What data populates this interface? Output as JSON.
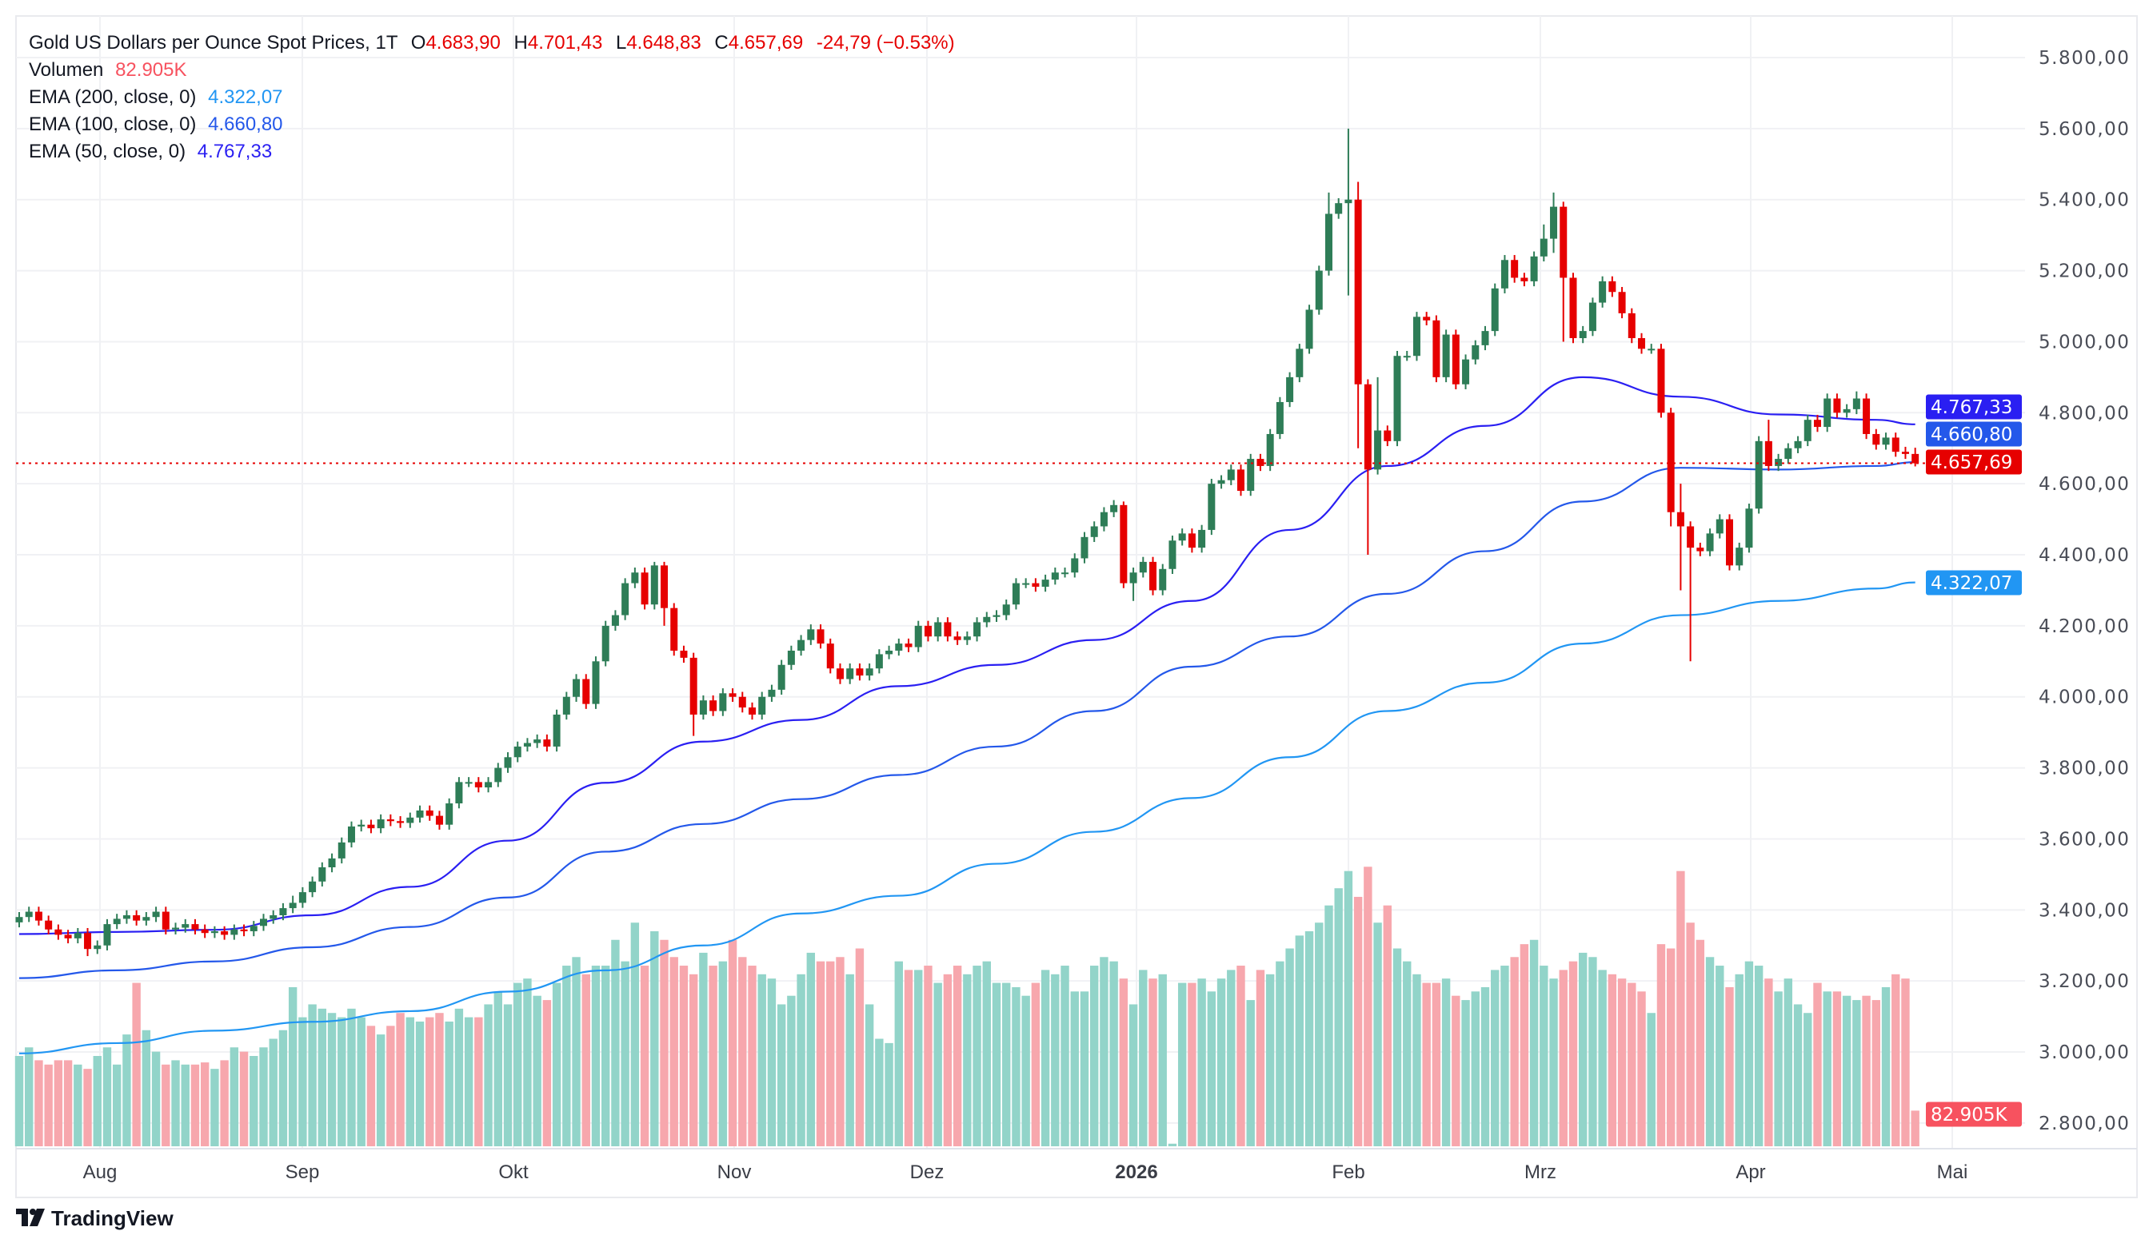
{
  "legend": {
    "title": "Gold US Dollars per Ounce Spot Prices, 1T",
    "o_label": "O",
    "o_value": "4.683,90",
    "h_label": "H",
    "h_value": "4.701,43",
    "l_label": "L",
    "l_value": "4.648,83",
    "c_label": "C",
    "c_value": "4.657,69",
    "change": "-24,79 (−0.53%)",
    "volume_label": "Volumen",
    "volume_value": "82.905K",
    "ema200_label": "EMA (200, close, 0)",
    "ema200_value": "4.322,07",
    "ema100_label": "EMA (100, close, 0)",
    "ema100_value": "4.660,80",
    "ema50_label": "EMA (50, close, 0)",
    "ema50_value": "4.767,33"
  },
  "price_tags": {
    "ema50": "4.767,33",
    "ema100": "4.660,80",
    "last": "4.657,69",
    "ema200": "4.322,07",
    "volume": "82.905K"
  },
  "branding": {
    "logo_text": "TradingView"
  },
  "colors": {
    "up": "#2e7d57",
    "down": "#e60000",
    "vol_up": "#92d4c9",
    "vol_down": "#f7a7ad",
    "ema50": "#2a1ff2",
    "ema100": "#2458ea",
    "ema200": "#2196f3",
    "last_tag": "#e60000",
    "vol_tag": "#f7525f"
  },
  "chart_data": {
    "type": "candlestick",
    "title": "Gold US Dollars per Ounce Spot Prices, 1T",
    "ylim": [
      2800,
      5800
    ],
    "y_ticks": [
      "5.800,00",
      "5.600,00",
      "5.400,00",
      "5.200,00",
      "5.000,00",
      "4.800,00",
      "4.600,00",
      "4.400,00",
      "4.200,00",
      "4.000,00",
      "3.800,00",
      "3.600,00",
      "3.400,00",
      "3.200,00",
      "3.000,00",
      "2.800,00"
    ],
    "y_tick_values": [
      5800,
      5600,
      5400,
      5200,
      5000,
      4800,
      4600,
      4400,
      4200,
      4000,
      3800,
      3600,
      3400,
      3200,
      3000,
      2800
    ],
    "x_ticks": [
      "Aug",
      "Sep",
      "Okt",
      "Nov",
      "Dez",
      "2026",
      "Feb",
      "Mrz",
      "Apr",
      "Mai"
    ],
    "grid": true,
    "close": [
      3380,
      3395,
      3370,
      3345,
      3330,
      3320,
      3335,
      3290,
      3300,
      3360,
      3375,
      3385,
      3370,
      3380,
      3395,
      3345,
      3350,
      3360,
      3345,
      3335,
      3340,
      3330,
      3345,
      3340,
      3355,
      3375,
      3385,
      3405,
      3420,
      3450,
      3480,
      3520,
      3545,
      3590,
      3635,
      3640,
      3630,
      3655,
      3650,
      3645,
      3660,
      3680,
      3665,
      3640,
      3700,
      3760,
      3760,
      3745,
      3760,
      3800,
      3830,
      3860,
      3870,
      3880,
      3860,
      3950,
      4000,
      4050,
      3980,
      4100,
      4200,
      4230,
      4320,
      4350,
      4260,
      4370,
      4250,
      4130,
      4110,
      3950,
      3990,
      3960,
      4010,
      4000,
      3970,
      3950,
      4000,
      4020,
      4090,
      4130,
      4160,
      4190,
      4150,
      4080,
      4050,
      4080,
      4060,
      4080,
      4120,
      4130,
      4150,
      4140,
      4200,
      4170,
      4210,
      4170,
      4160,
      4170,
      4210,
      4225,
      4230,
      4260,
      4320,
      4320,
      4310,
      4330,
      4350,
      4350,
      4390,
      4450,
      4480,
      4520,
      4540,
      4320,
      4350,
      4380,
      4300,
      4360,
      4440,
      4460,
      4420,
      4470,
      4600,
      4610,
      4640,
      4580,
      4670,
      4650,
      4740,
      4830,
      4900,
      4980,
      5090,
      5200,
      5360,
      5390,
      5400,
      4880,
      4640,
      4750,
      4720,
      4960,
      4960,
      5070,
      5060,
      4900,
      5020,
      4880,
      4950,
      4990,
      5030,
      5150,
      5230,
      5180,
      5170,
      5240,
      5290,
      5380,
      5180,
      5010,
      5030,
      5110,
      5170,
      5140,
      5080,
      5010,
      4980,
      4980,
      4800,
      4520,
      4480,
      4420,
      4410,
      4460,
      4500,
      4370,
      4420,
      4530,
      4720,
      4650,
      4670,
      4700,
      4720,
      4780,
      4760,
      4840,
      4800,
      4810,
      4840,
      4740,
      4710,
      4730,
      4690,
      4683.9,
      4657.69
    ],
    "extremes": [
      {
        "bar": 7,
        "low": 3270
      },
      {
        "bar": 28,
        "high": 3440
      },
      {
        "bar": 65,
        "high": 4380
      },
      {
        "bar": 66,
        "high": 4380,
        "low": 4200
      },
      {
        "bar": 69,
        "low": 3890
      },
      {
        "bar": 113,
        "high": 4550
      },
      {
        "bar": 114,
        "low": 4270
      },
      {
        "bar": 134,
        "high": 5420
      },
      {
        "bar": 136,
        "high": 5600,
        "low": 5130
      },
      {
        "bar": 137,
        "high": 5450,
        "low": 4700
      },
      {
        "bar": 138,
        "low": 4400
      },
      {
        "bar": 139,
        "high": 4900
      },
      {
        "bar": 156,
        "high": 5330
      },
      {
        "bar": 157,
        "high": 5420,
        "low": 5250
      },
      {
        "bar": 158,
        "low": 5000
      },
      {
        "bar": 169,
        "low": 4480
      },
      {
        "bar": 170,
        "high": 4600,
        "low": 4300
      },
      {
        "bar": 171,
        "low": 4100
      },
      {
        "bar": 179,
        "high": 4780
      },
      {
        "bar": 188,
        "high": 4860
      },
      {
        "bar": 194,
        "open": 4683.9,
        "high": 4701.43,
        "low": 4648.83
      }
    ],
    "volume_k": [
      210,
      230,
      200,
      190,
      200,
      200,
      190,
      180,
      210,
      230,
      190,
      260,
      380,
      270,
      220,
      190,
      200,
      190,
      190,
      195,
      180,
      200,
      230,
      220,
      210,
      230,
      250,
      270,
      370,
      300,
      330,
      320,
      310,
      300,
      320,
      300,
      280,
      260,
      280,
      310,
      300,
      290,
      300,
      310,
      290,
      320,
      300,
      300,
      330,
      360,
      330,
      380,
      390,
      350,
      340,
      380,
      420,
      440,
      400,
      420,
      420,
      480,
      430,
      520,
      420,
      500,
      480,
      440,
      420,
      400,
      450,
      420,
      430,
      480,
      440,
      420,
      400,
      390,
      330,
      350,
      400,
      450,
      430,
      430,
      440,
      400,
      460,
      330,
      250,
      240,
      430,
      410,
      410,
      420,
      380,
      400,
      420,
      400,
      420,
      430,
      380,
      380,
      370,
      350,
      380,
      410,
      400,
      420,
      360,
      360,
      420,
      440,
      430,
      390,
      330,
      410,
      390,
      400,
      6,
      380,
      380,
      390,
      360,
      390,
      410,
      420,
      340,
      410,
      400,
      430,
      460,
      490,
      500,
      520,
      560,
      600,
      640,
      580,
      650,
      520,
      560,
      460,
      430,
      400,
      380,
      380,
      390,
      350,
      340,
      360,
      370,
      410,
      420,
      440,
      470,
      480,
      420,
      390,
      410,
      430,
      450,
      440,
      410,
      400,
      390,
      380,
      360,
      310,
      470,
      460,
      640,
      520,
      480,
      440,
      420,
      370,
      400,
      430,
      420,
      390,
      360,
      390,
      330,
      310,
      380,
      360,
      360,
      350,
      340,
      350,
      340,
      370,
      400,
      390,
      82.905
    ],
    "ema_sample_every_bars": 10,
    "series": [
      {
        "name": "EMA (50, close, 0)",
        "values": [
          3332,
          3338,
          3344,
          3385,
          3465,
          3595,
          3758,
          3874,
          3935,
          4030,
          4090,
          4160,
          4270,
          4470,
          4650,
          4763,
          4900,
          4845,
          4795,
          4780,
          4767.33
        ]
      },
      {
        "name": "EMA (100, close, 0)",
        "values": [
          3208,
          3230,
          3255,
          3295,
          3352,
          3435,
          3564,
          3642,
          3712,
          3780,
          3860,
          3960,
          4085,
          4170,
          4290,
          4410,
          4550,
          4645,
          4640,
          4650,
          4660.8
        ]
      },
      {
        "name": "EMA (200, close, 0)",
        "values": [
          2996,
          3025,
          3060,
          3085,
          3115,
          3170,
          3230,
          3300,
          3390,
          3440,
          3530,
          3620,
          3715,
          3830,
          3960,
          4040,
          4150,
          4230,
          4270,
          4305,
          4322.07
        ]
      }
    ]
  }
}
